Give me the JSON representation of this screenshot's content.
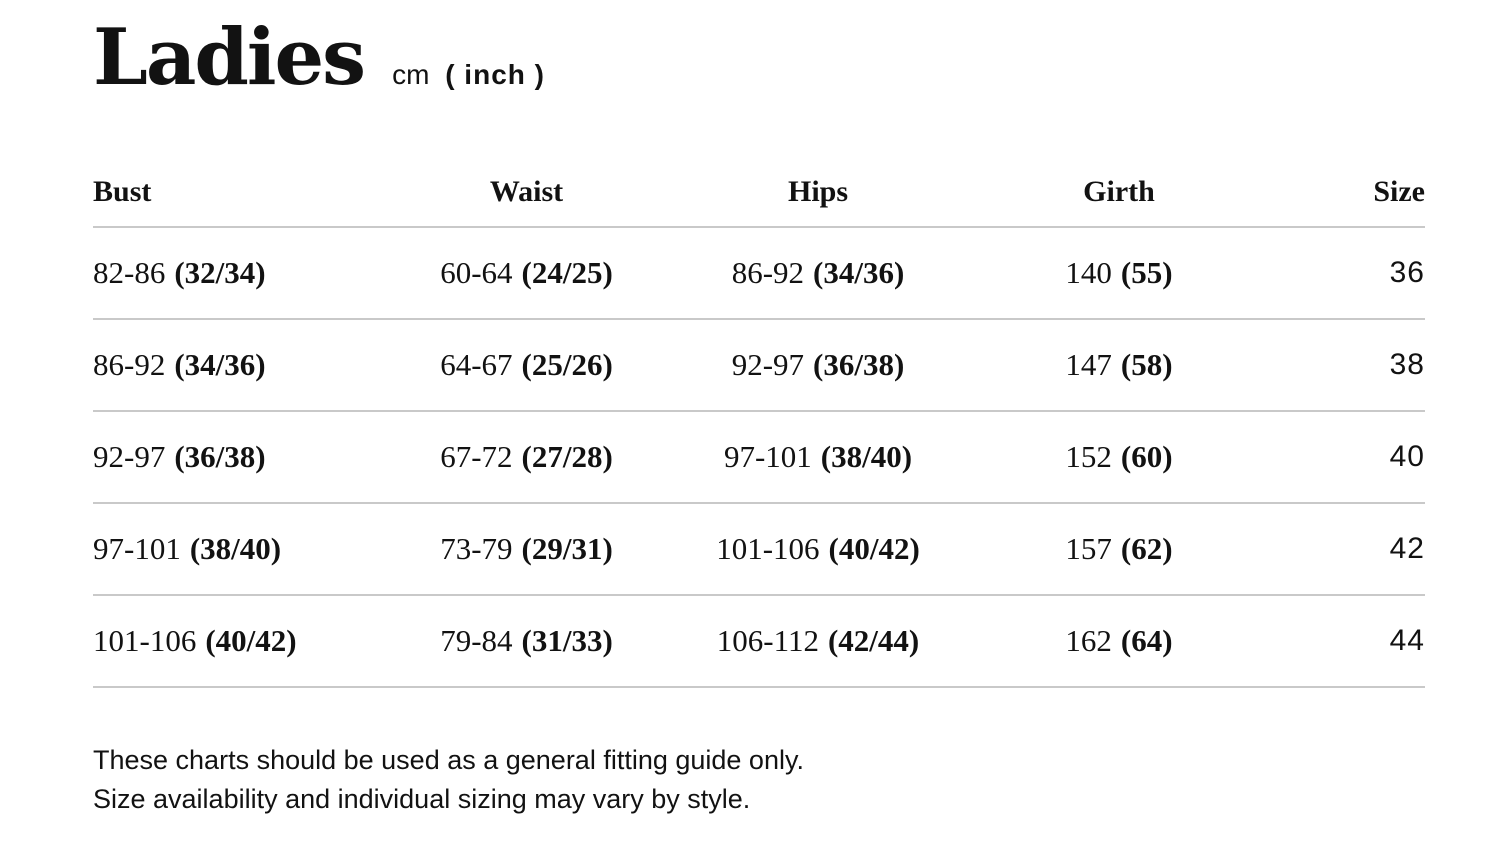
{
  "page": {
    "background_color": "#ffffff",
    "text_color": "#121212",
    "divider_color": "#c9c9c9"
  },
  "header": {
    "title": "Ladies",
    "unit_cm": "cm",
    "unit_inch": "( inch )"
  },
  "table": {
    "headers": [
      "Bust",
      "Waist",
      "Hips",
      "Girth",
      "Size"
    ],
    "rows": [
      {
        "bust_cm": "82-86",
        "bust_in": "(32/34)",
        "waist_cm": "60-64",
        "waist_in": "(24/25)",
        "hips_cm": "86-92",
        "hips_in": "(34/36)",
        "girth_cm": "140",
        "girth_in": "(55)",
        "size": "36"
      },
      {
        "bust_cm": "86-92",
        "bust_in": "(34/36)",
        "waist_cm": "64-67",
        "waist_in": "(25/26)",
        "hips_cm": "92-97",
        "hips_in": "(36/38)",
        "girth_cm": "147",
        "girth_in": "(58)",
        "size": "38"
      },
      {
        "bust_cm": "92-97",
        "bust_in": "(36/38)",
        "waist_cm": "67-72",
        "waist_in": "(27/28)",
        "hips_cm": "97-101",
        "hips_in": "(38/40)",
        "girth_cm": "152",
        "girth_in": "(60)",
        "size": "40"
      },
      {
        "bust_cm": "97-101",
        "bust_in": "(38/40)",
        "waist_cm": "73-79",
        "waist_in": "(29/31)",
        "hips_cm": "101-106",
        "hips_in": "(40/42)",
        "girth_cm": "157",
        "girth_in": "(62)",
        "size": "42"
      },
      {
        "bust_cm": "101-106",
        "bust_in": "(40/42)",
        "waist_cm": "79-84",
        "waist_in": "(31/33)",
        "hips_cm": "106-112",
        "hips_in": "(42/44)",
        "girth_cm": "162",
        "girth_in": "(64)",
        "size": "44"
      }
    ]
  },
  "footer": {
    "line1": "These charts should be used as a general fitting guide only.",
    "line2": "Size availability and individual sizing may vary by style."
  }
}
